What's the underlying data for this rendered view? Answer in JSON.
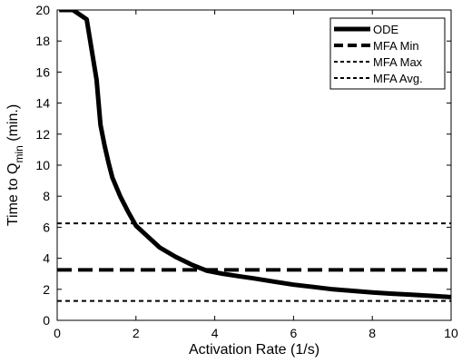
{
  "chart_data": {
    "type": "line",
    "xlabel": "Activation Rate (1/s)",
    "ylabel": {
      "main": "Time to Q",
      "sub": "min",
      "suffix": " (min.)"
    },
    "xlim": [
      0,
      10
    ],
    "ylim": [
      0,
      20
    ],
    "xticks": [
      0,
      2,
      4,
      6,
      8,
      10
    ],
    "yticks": [
      0,
      2,
      4,
      6,
      8,
      10,
      12,
      14,
      16,
      18,
      20
    ],
    "grid": false,
    "legend_position": "top-right",
    "series": [
      {
        "name": "ODE",
        "style": "solid-thick",
        "color": "#000000",
        "x": [
          0.05,
          0.4,
          0.75,
          1.0,
          1.1,
          1.2,
          1.3,
          1.4,
          1.6,
          1.8,
          2.0,
          2.3,
          2.6,
          3.0,
          3.4,
          3.8,
          4.2,
          4.6,
          5.0,
          5.5,
          6.0,
          6.5,
          7.0,
          7.5,
          8.0,
          8.5,
          9.0,
          9.5,
          10.0
        ],
        "y": [
          20.0,
          20.0,
          19.4,
          15.5,
          12.6,
          11.3,
          10.2,
          9.2,
          8.0,
          7.0,
          6.1,
          5.4,
          4.7,
          4.1,
          3.6,
          3.2,
          3.0,
          2.85,
          2.7,
          2.5,
          2.3,
          2.15,
          2.0,
          1.9,
          1.8,
          1.72,
          1.65,
          1.58,
          1.5
        ]
      },
      {
        "name": "MFA Min",
        "style": "dashed-thick",
        "color": "#000000",
        "x": [
          0,
          10
        ],
        "y": [
          3.25,
          3.25
        ]
      },
      {
        "name": "MFA Max",
        "style": "dotted",
        "color": "#000000",
        "x": [
          0,
          10
        ],
        "y": [
          6.25,
          6.25
        ]
      },
      {
        "name": "MFA Avg.",
        "style": "dotted",
        "color": "#000000",
        "x": [
          0,
          10
        ],
        "y": [
          1.25,
          1.25
        ]
      }
    ]
  }
}
